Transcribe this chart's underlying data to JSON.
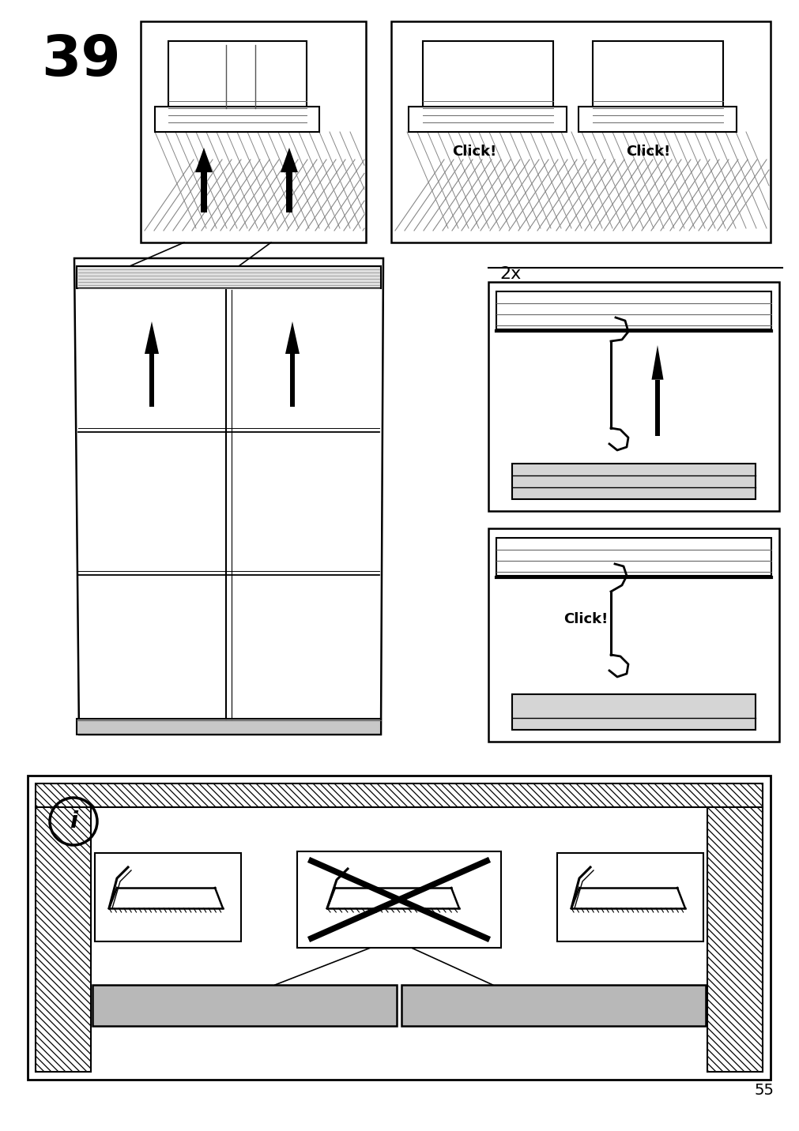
{
  "page_number": "55",
  "step_number": "39",
  "bg_color": "#ffffff",
  "line_color": "#000000",
  "fig_width": 10.12,
  "fig_height": 14.32,
  "dpi": 100,
  "click_text_1": "Click!",
  "click_text_2": "Click!",
  "click_text_3": "Click!",
  "two_x_label": "2x",
  "info_symbol": "i",
  "step_font_size": 52,
  "label_font_size": 13,
  "page_num_font_size": 14
}
